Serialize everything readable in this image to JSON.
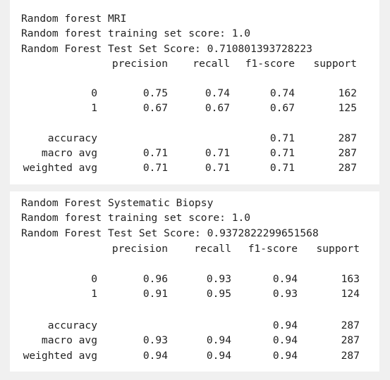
{
  "reports": [
    {
      "header_lines": [
        "Random forest MRI",
        "Random forest training set score: 1.0",
        "Random Forest Test Set Score: 0.710801393728223"
      ],
      "columns": [
        "precision",
        "recall",
        "f1-score",
        "support"
      ],
      "class_rows": [
        {
          "label": "0",
          "precision": "0.75",
          "recall": "0.74",
          "f1": "0.74",
          "support": "162"
        },
        {
          "label": "1",
          "precision": "0.67",
          "recall": "0.67",
          "f1": "0.67",
          "support": "125"
        }
      ],
      "summary_rows": [
        {
          "label": "accuracy",
          "precision": "",
          "recall": "",
          "f1": "0.71",
          "support": "287"
        },
        {
          "label": "macro avg",
          "precision": "0.71",
          "recall": "0.71",
          "f1": "0.71",
          "support": "287"
        },
        {
          "label": "weighted avg",
          "precision": "0.71",
          "recall": "0.71",
          "f1": "0.71",
          "support": "287"
        }
      ]
    },
    {
      "header_lines": [
        "Random Forest Systematic Biopsy",
        "Random forest training set score: 1.0",
        "Random Forest Test Set Score: 0.9372822299651568"
      ],
      "columns": [
        "precision",
        "recall",
        "f1-score",
        "support"
      ],
      "class_rows": [
        {
          "label": "0",
          "precision": "0.96",
          "recall": "0.93",
          "f1": "0.94",
          "support": "163"
        },
        {
          "label": "1",
          "precision": "0.91",
          "recall": "0.95",
          "f1": "0.93",
          "support": "124"
        }
      ],
      "summary_rows": [
        {
          "label": "accuracy",
          "precision": "",
          "recall": "",
          "f1": "0.94",
          "support": "287"
        },
        {
          "label": "macro avg",
          "precision": "0.93",
          "recall": "0.94",
          "f1": "0.94",
          "support": "287"
        },
        {
          "label": "weighted avg",
          "precision": "0.94",
          "recall": "0.94",
          "f1": "0.94",
          "support": "287"
        }
      ]
    }
  ]
}
